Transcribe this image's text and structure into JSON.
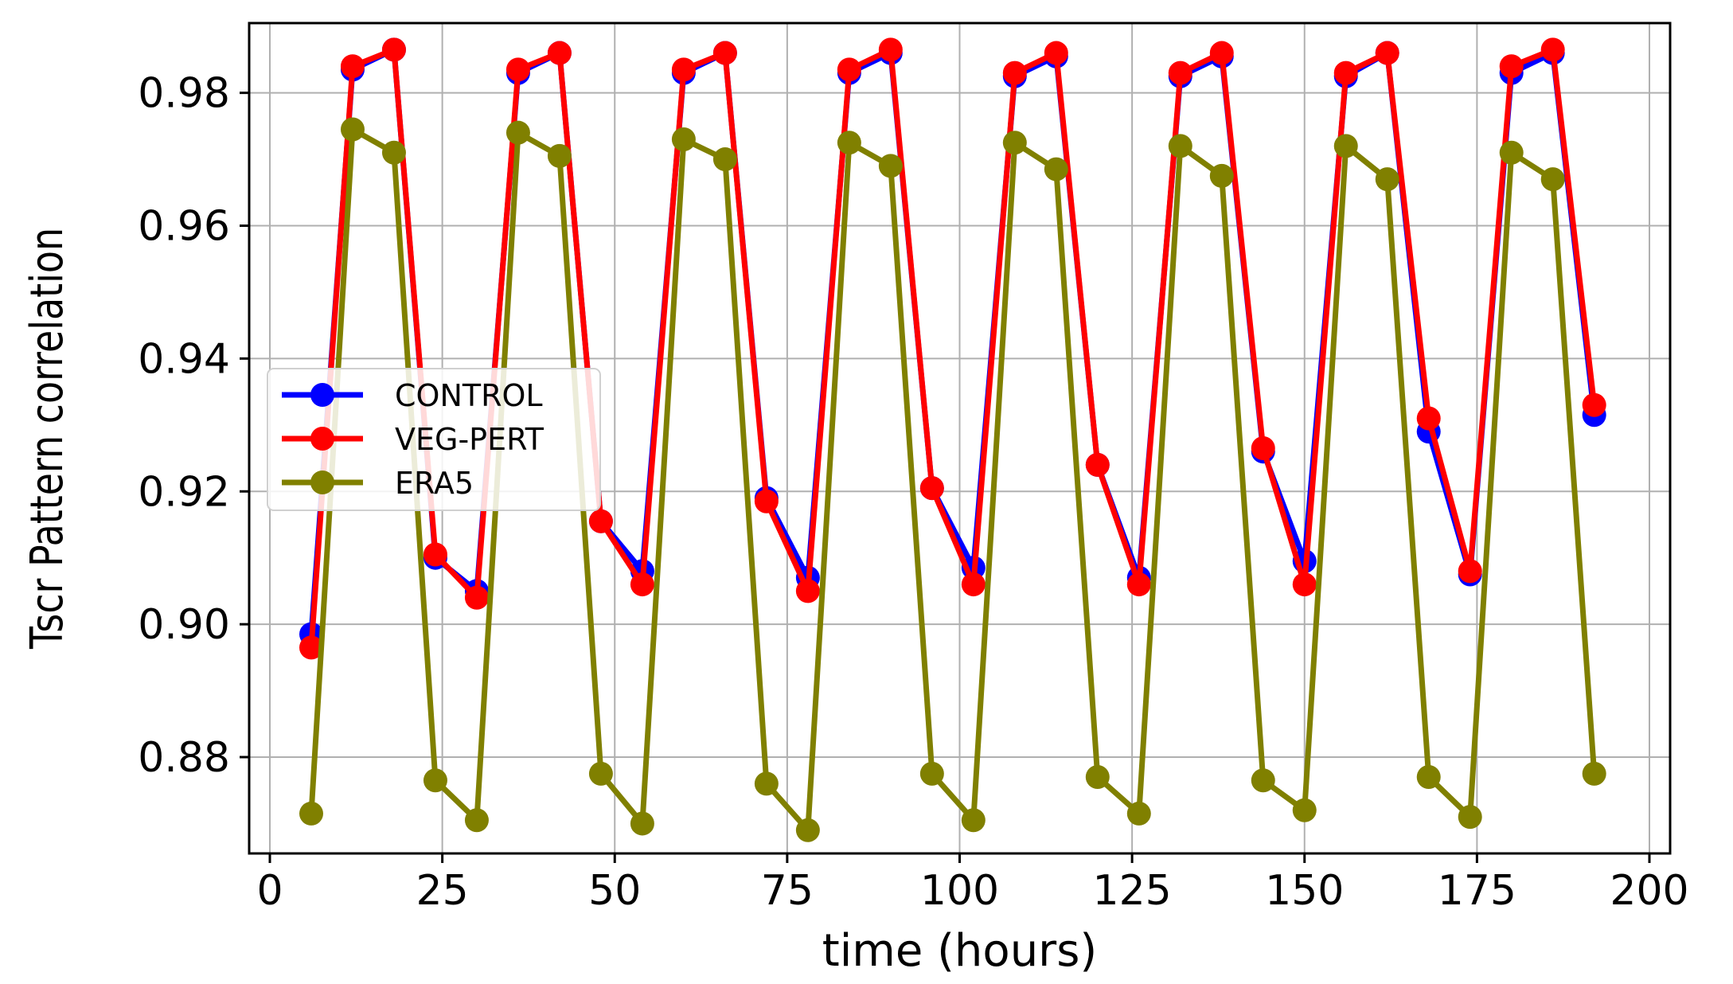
{
  "chart_data": {
    "type": "line",
    "title": "",
    "xlabel": "time (hours)",
    "ylabel": "Tscr Pattern correlation",
    "xlim": [
      -3,
      203
    ],
    "ylim": [
      0.8655,
      0.9905
    ],
    "xticks": [
      0,
      25,
      50,
      75,
      100,
      125,
      150,
      175,
      200
    ],
    "yticks": [
      0.88,
      0.9,
      0.92,
      0.94,
      0.96,
      0.98
    ],
    "ytick_labels": [
      "0.88",
      "0.90",
      "0.92",
      "0.94",
      "0.96",
      "0.98"
    ],
    "grid": true,
    "legend_position": "center-left",
    "x": [
      6,
      12,
      18,
      24,
      30,
      36,
      42,
      48,
      54,
      60,
      66,
      72,
      78,
      84,
      90,
      96,
      102,
      108,
      114,
      120,
      126,
      132,
      138,
      144,
      150,
      156,
      162,
      168,
      174,
      180,
      186,
      192
    ],
    "series": [
      {
        "name": "CONTROL",
        "color": "#0000ff",
        "values": [
          0.8985,
          0.9835,
          0.9865,
          0.91,
          0.905,
          0.983,
          0.986,
          0.9155,
          0.908,
          0.983,
          0.986,
          0.919,
          0.907,
          0.983,
          0.986,
          0.9205,
          0.9085,
          0.9825,
          0.9855,
          0.924,
          0.907,
          0.9825,
          0.9855,
          0.926,
          0.9095,
          0.9825,
          0.986,
          0.929,
          0.9075,
          0.983,
          0.986,
          0.9315
        ]
      },
      {
        "name": "VEG-PERT",
        "color": "#ff0000",
        "values": [
          0.8965,
          0.984,
          0.9865,
          0.9105,
          0.904,
          0.9835,
          0.986,
          0.9155,
          0.906,
          0.9835,
          0.986,
          0.9185,
          0.905,
          0.9835,
          0.9865,
          0.9205,
          0.906,
          0.983,
          0.986,
          0.924,
          0.906,
          0.983,
          0.986,
          0.9265,
          0.906,
          0.983,
          0.986,
          0.931,
          0.908,
          0.984,
          0.9865,
          0.933
        ]
      },
      {
        "name": "ERA5",
        "color": "#808000",
        "values": [
          0.8715,
          0.9745,
          0.971,
          0.8765,
          0.8705,
          0.974,
          0.9705,
          0.8775,
          0.87,
          0.973,
          0.97,
          0.876,
          0.869,
          0.9725,
          0.969,
          0.8775,
          0.8705,
          0.9725,
          0.9685,
          0.877,
          0.8715,
          0.972,
          0.9675,
          0.8765,
          0.872,
          0.972,
          0.967,
          0.877,
          0.871,
          0.971,
          0.967,
          0.8775
        ]
      }
    ]
  }
}
